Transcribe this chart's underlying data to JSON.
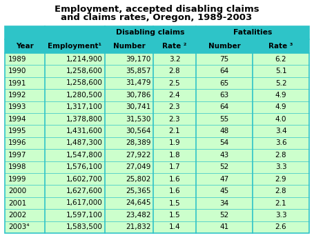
{
  "title_line1": "Employment, accepted disabling claims",
  "title_line2": "and claims rates, Oregon, 1989-2003",
  "header_bg": "#2EC4C8",
  "data_bg": "#CCFFCC",
  "border_color": "#2EC4C8",
  "years": [
    "1989",
    "1990",
    "1991",
    "1992",
    "1993",
    "1994",
    "1995",
    "1996",
    "1997",
    "1998",
    "1999",
    "2000",
    "2001",
    "2002",
    "2003⁴"
  ],
  "employment": [
    "1,214,900",
    "1,258,600",
    "1,258,600",
    "1,280,500",
    "1,317,100",
    "1,378,800",
    "1,431,600",
    "1,487,300",
    "1,547,800",
    "1,576,100",
    "1,602,700",
    "1,627,600",
    "1,617,000",
    "1,597,100",
    "1,583,500"
  ],
  "dc_number": [
    "39,170",
    "35,857",
    "31,479",
    "30,786",
    "30,741",
    "31,530",
    "30,564",
    "28,389",
    "27,922",
    "27,049",
    "25,802",
    "25,365",
    "24,645",
    "23,482",
    "21,832"
  ],
  "dc_rate": [
    "3.2",
    "2.8",
    "2.5",
    "2.4",
    "2.3",
    "2.3",
    "2.1",
    "1.9",
    "1.8",
    "1.7",
    "1.6",
    "1.6",
    "1.5",
    "1.5",
    "1.4"
  ],
  "fat_number": [
    "75",
    "64",
    "65",
    "63",
    "64",
    "55",
    "48",
    "54",
    "43",
    "52",
    "47",
    "45",
    "34",
    "52",
    "41"
  ],
  "fat_rate": [
    "6.2",
    "5.1",
    "5.2",
    "4.9",
    "4.9",
    "4.0",
    "3.4",
    "3.6",
    "2.8",
    "3.3",
    "2.9",
    "2.8",
    "2.1",
    "3.3",
    "2.6"
  ],
  "col1_label": "Year",
  "col2_label": "Employment¹",
  "col3_label": "Number",
  "col4_label": "Rate ²",
  "col5_label": "Number",
  "col6_label": "Rate ³",
  "group1_label": "Disabling claims",
  "group2_label": "Fatalities",
  "figw": 4.55,
  "figh": 3.48,
  "dpi": 100
}
